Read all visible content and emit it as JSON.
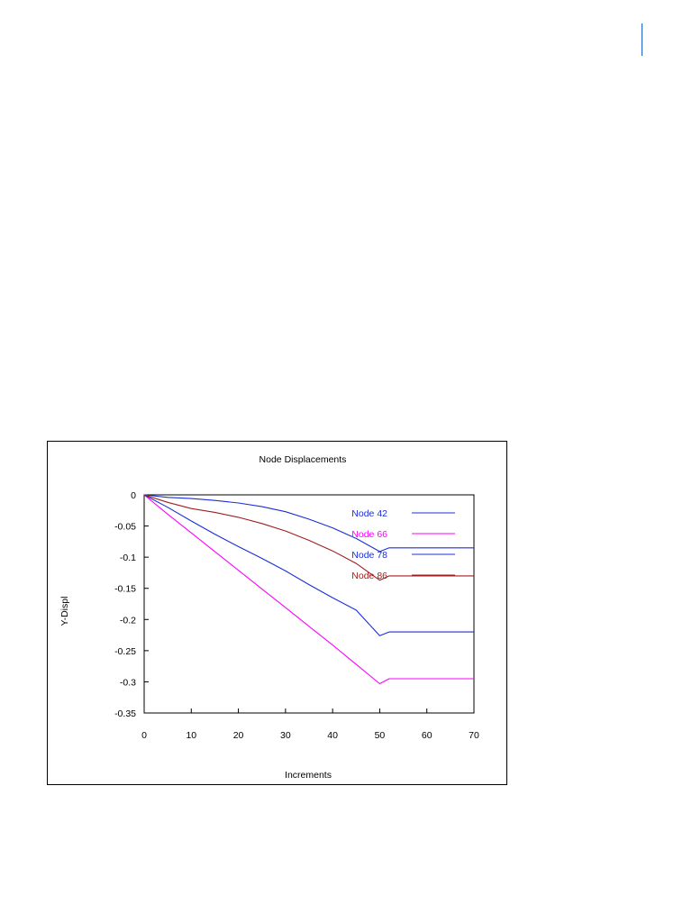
{
  "chart_data": {
    "type": "line",
    "title": "Node Displacements",
    "xlabel": "Increments",
    "ylabel": "Y-Displ",
    "xlim": [
      0,
      70
    ],
    "ylim": [
      -0.35,
      0
    ],
    "x_ticks": [
      0,
      10,
      20,
      30,
      40,
      50,
      60,
      70
    ],
    "y_ticks": [
      0,
      -0.05,
      -0.1,
      -0.15,
      -0.2,
      -0.25,
      -0.3,
      -0.35
    ],
    "grid": false,
    "legend_position": "top-right",
    "series": [
      {
        "name": "Node 42",
        "color": "#1c2fd6",
        "x": [
          0,
          5,
          10,
          15,
          20,
          25,
          30,
          35,
          40,
          45,
          50,
          52,
          60,
          70
        ],
        "y": [
          0,
          -0.004,
          -0.006,
          -0.009,
          -0.013,
          -0.019,
          -0.027,
          -0.039,
          -0.053,
          -0.07,
          -0.091,
          -0.085,
          -0.085,
          -0.085
        ]
      },
      {
        "name": "Node 66",
        "color": "#ff00ff",
        "x": [
          0,
          5,
          10,
          15,
          20,
          25,
          30,
          35,
          40,
          45,
          50,
          52,
          60,
          70
        ],
        "y": [
          0,
          -0.031,
          -0.061,
          -0.091,
          -0.121,
          -0.151,
          -0.181,
          -0.211,
          -0.241,
          -0.272,
          -0.303,
          -0.295,
          -0.295,
          -0.295
        ]
      },
      {
        "name": "Node 78",
        "color": "#1c2fd6",
        "x": [
          0,
          5,
          10,
          15,
          20,
          25,
          30,
          35,
          40,
          45,
          50,
          52,
          60,
          70
        ],
        "y": [
          0,
          -0.02,
          -0.042,
          -0.063,
          -0.083,
          -0.102,
          -0.122,
          -0.144,
          -0.165,
          -0.185,
          -0.226,
          -0.22,
          -0.22,
          -0.22
        ]
      },
      {
        "name": "Node 86",
        "color": "#a01e1e",
        "x": [
          0,
          5,
          10,
          15,
          20,
          25,
          30,
          35,
          40,
          45,
          50,
          52,
          60,
          70
        ],
        "y": [
          0,
          -0.012,
          -0.022,
          -0.028,
          -0.036,
          -0.046,
          -0.058,
          -0.073,
          -0.09,
          -0.11,
          -0.137,
          -0.13,
          -0.13,
          -0.13
        ]
      }
    ]
  }
}
